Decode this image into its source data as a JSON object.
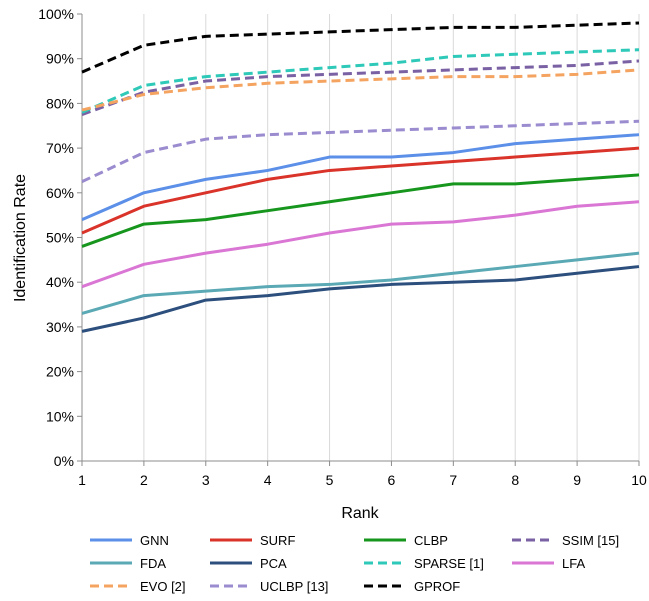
{
  "chart_data": {
    "type": "line",
    "title": "",
    "xlabel": "Rank",
    "ylabel": "Identification Rate",
    "x": [
      1,
      2,
      3,
      4,
      5,
      6,
      7,
      8,
      9,
      10
    ],
    "xlim": [
      1,
      10
    ],
    "ylim": [
      0,
      100
    ],
    "x_ticks": [
      "1",
      "2",
      "3",
      "4",
      "5",
      "6",
      "7",
      "8",
      "9",
      "10"
    ],
    "y_ticks": [
      "0%",
      "10%",
      "20%",
      "30%",
      "40%",
      "50%",
      "60%",
      "70%",
      "80%",
      "90%",
      "100%"
    ],
    "y_tick_values": [
      0,
      10,
      20,
      30,
      40,
      50,
      60,
      70,
      80,
      90,
      100
    ],
    "grid": "vertical",
    "legend_position": "bottom",
    "series": [
      {
        "name": "GNN",
        "color": "#5b8fe8",
        "dash": false,
        "values": [
          54,
          60,
          63,
          65,
          68,
          68,
          69,
          71,
          72,
          73
        ]
      },
      {
        "name": "SURF",
        "color": "#d9332a",
        "dash": false,
        "values": [
          51,
          57,
          60,
          63,
          65,
          66,
          67,
          68,
          69,
          70
        ]
      },
      {
        "name": "CLBP",
        "color": "#17961e",
        "dash": false,
        "values": [
          48,
          53,
          54,
          56,
          58,
          60,
          62,
          62,
          63,
          64
        ]
      },
      {
        "name": "SSIM [15]",
        "color": "#7a61a4",
        "dash": true,
        "values": [
          77.5,
          82.5,
          85,
          86,
          86.5,
          87,
          87.5,
          88,
          88.5,
          89.5
        ]
      },
      {
        "name": "FDA",
        "color": "#5aa9b4",
        "dash": false,
        "values": [
          33,
          37,
          38,
          39,
          39.5,
          40.5,
          42,
          43.5,
          45,
          46.5
        ]
      },
      {
        "name": "PCA",
        "color": "#2c4f7d",
        "dash": false,
        "values": [
          29,
          32,
          36,
          37,
          38.5,
          39.5,
          40,
          40.5,
          42,
          43.5
        ]
      },
      {
        "name": "SPARSE [1]",
        "color": "#2ec9b8",
        "dash": true,
        "values": [
          78,
          84,
          86,
          87,
          88,
          89,
          90.5,
          91,
          91.5,
          92
        ]
      },
      {
        "name": "LFA",
        "color": "#da76d4",
        "dash": false,
        "values": [
          39,
          44,
          46.5,
          48.5,
          51,
          53,
          53.5,
          55,
          57,
          58
        ]
      },
      {
        "name": "EVO [2]",
        "color": "#f4a460",
        "dash": true,
        "values": [
          78.5,
          82,
          83.5,
          84.5,
          85,
          85.5,
          86,
          86,
          86.5,
          87.5
        ]
      },
      {
        "name": "UCLBP [13]",
        "color": "#9b8bcf",
        "dash": true,
        "values": [
          62.5,
          69,
          72,
          73,
          73.5,
          74,
          74.5,
          75,
          75.5,
          76
        ]
      },
      {
        "name": "GPROF",
        "color": "#000000",
        "dash": true,
        "values": [
          87,
          93,
          95,
          95.5,
          96,
          96.5,
          97,
          97,
          97.5,
          98
        ]
      }
    ]
  }
}
